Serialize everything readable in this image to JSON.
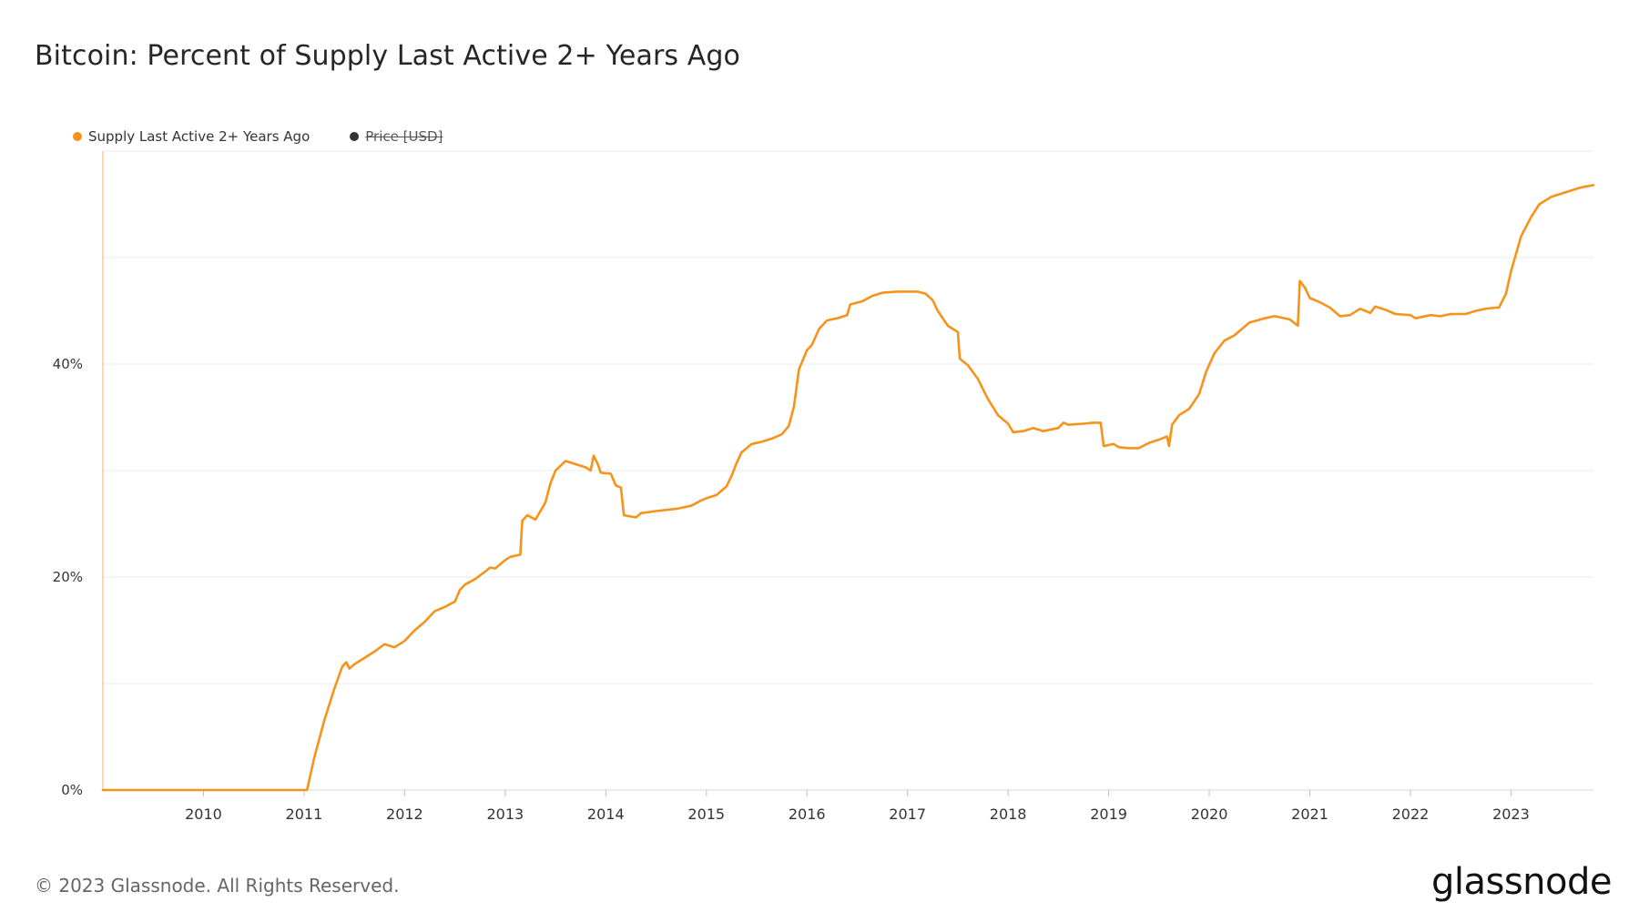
{
  "title": "Bitcoin: Percent of Supply Last Active 2+ Years Ago",
  "footer": "© 2023 Glassnode. All Rights Reserved.",
  "logo": "glassnode",
  "colors": {
    "series": "#f7931a",
    "price_legend": "#333333",
    "grid": "#ebebeb",
    "axis_text": "#333333"
  },
  "legend": [
    {
      "label": "Supply Last Active 2+ Years Ago",
      "color": "#f7931a",
      "hidden": false
    },
    {
      "label": "Price [USD]",
      "color": "#333333",
      "hidden": true
    }
  ],
  "chart_data": {
    "type": "line",
    "title": "Bitcoin: Percent of Supply Last Active 2+ Years Ago",
    "xlabel": "",
    "ylabel": "",
    "xlim": [
      2009.0,
      2023.82
    ],
    "ylim": [
      0,
      60
    ],
    "x_ticks": [
      "2010",
      "2011",
      "2012",
      "2013",
      "2014",
      "2015",
      "2016",
      "2017",
      "2018",
      "2019",
      "2020",
      "2021",
      "2022",
      "2023"
    ],
    "y_ticks": [
      "0%",
      "20%",
      "40%"
    ],
    "y_tick_values": [
      0,
      20,
      40
    ],
    "grid": true,
    "legend_position": "top-left",
    "series": [
      {
        "name": "Supply Last Active 2+ Years Ago",
        "points": [
          [
            2009.0,
            0.0
          ],
          [
            2011.03,
            0.0
          ],
          [
            2011.1,
            3.0
          ],
          [
            2011.2,
            6.5
          ],
          [
            2011.3,
            9.5
          ],
          [
            2011.38,
            11.6
          ],
          [
            2011.42,
            12.0
          ],
          [
            2011.45,
            11.4
          ],
          [
            2011.5,
            11.8
          ],
          [
            2011.6,
            12.4
          ],
          [
            2011.7,
            13.0
          ],
          [
            2011.8,
            13.7
          ],
          [
            2011.9,
            13.4
          ],
          [
            2012.0,
            14.0
          ],
          [
            2012.1,
            15.0
          ],
          [
            2012.2,
            15.8
          ],
          [
            2012.3,
            16.8
          ],
          [
            2012.4,
            17.2
          ],
          [
            2012.5,
            17.7
          ],
          [
            2012.55,
            18.8
          ],
          [
            2012.6,
            19.3
          ],
          [
            2012.7,
            19.8
          ],
          [
            2012.8,
            20.5
          ],
          [
            2012.85,
            20.9
          ],
          [
            2012.9,
            20.8
          ],
          [
            2012.95,
            21.2
          ],
          [
            2013.0,
            21.6
          ],
          [
            2013.05,
            21.9
          ],
          [
            2013.15,
            22.1
          ],
          [
            2013.17,
            25.3
          ],
          [
            2013.22,
            25.8
          ],
          [
            2013.3,
            25.4
          ],
          [
            2013.35,
            26.2
          ],
          [
            2013.4,
            27.0
          ],
          [
            2013.45,
            28.8
          ],
          [
            2013.5,
            30.0
          ],
          [
            2013.6,
            30.9
          ],
          [
            2013.7,
            30.6
          ],
          [
            2013.8,
            30.3
          ],
          [
            2013.85,
            30.0
          ],
          [
            2013.88,
            31.4
          ],
          [
            2013.92,
            30.6
          ],
          [
            2013.95,
            29.8
          ],
          [
            2014.05,
            29.7
          ],
          [
            2014.1,
            28.6
          ],
          [
            2014.15,
            28.4
          ],
          [
            2014.18,
            25.8
          ],
          [
            2014.3,
            25.6
          ],
          [
            2014.35,
            26.0
          ],
          [
            2014.5,
            26.2
          ],
          [
            2014.7,
            26.4
          ],
          [
            2014.85,
            26.7
          ],
          [
            2014.95,
            27.2
          ],
          [
            2015.0,
            27.4
          ],
          [
            2015.1,
            27.7
          ],
          [
            2015.2,
            28.5
          ],
          [
            2015.25,
            29.5
          ],
          [
            2015.3,
            30.7
          ],
          [
            2015.35,
            31.7
          ],
          [
            2015.45,
            32.5
          ],
          [
            2015.55,
            32.7
          ],
          [
            2015.65,
            33.0
          ],
          [
            2015.75,
            33.4
          ],
          [
            2015.82,
            34.2
          ],
          [
            2015.87,
            36.0
          ],
          [
            2015.92,
            39.5
          ],
          [
            2016.0,
            41.3
          ],
          [
            2016.05,
            41.8
          ],
          [
            2016.12,
            43.3
          ],
          [
            2016.2,
            44.1
          ],
          [
            2016.3,
            44.3
          ],
          [
            2016.4,
            44.6
          ],
          [
            2016.43,
            45.6
          ],
          [
            2016.55,
            45.9
          ],
          [
            2016.65,
            46.4
          ],
          [
            2016.75,
            46.7
          ],
          [
            2016.9,
            46.8
          ],
          [
            2017.0,
            46.8
          ],
          [
            2017.1,
            46.8
          ],
          [
            2017.18,
            46.6
          ],
          [
            2017.25,
            46.0
          ],
          [
            2017.3,
            45.0
          ],
          [
            2017.4,
            43.6
          ],
          [
            2017.5,
            43.0
          ],
          [
            2017.52,
            40.5
          ],
          [
            2017.6,
            39.9
          ],
          [
            2017.7,
            38.6
          ],
          [
            2017.8,
            36.7
          ],
          [
            2017.9,
            35.2
          ],
          [
            2018.0,
            34.4
          ],
          [
            2018.05,
            33.6
          ],
          [
            2018.15,
            33.7
          ],
          [
            2018.25,
            34.0
          ],
          [
            2018.35,
            33.7
          ],
          [
            2018.5,
            34.0
          ],
          [
            2018.55,
            34.5
          ],
          [
            2018.6,
            34.3
          ],
          [
            2018.75,
            34.4
          ],
          [
            2018.85,
            34.5
          ],
          [
            2018.92,
            34.5
          ],
          [
            2018.95,
            32.3
          ],
          [
            2019.05,
            32.5
          ],
          [
            2019.1,
            32.2
          ],
          [
            2019.2,
            32.1
          ],
          [
            2019.3,
            32.1
          ],
          [
            2019.4,
            32.6
          ],
          [
            2019.5,
            32.9
          ],
          [
            2019.58,
            33.2
          ],
          [
            2019.6,
            32.3
          ],
          [
            2019.63,
            34.3
          ],
          [
            2019.7,
            35.2
          ],
          [
            2019.8,
            35.8
          ],
          [
            2019.9,
            37.2
          ],
          [
            2019.97,
            39.3
          ],
          [
            2020.05,
            41.0
          ],
          [
            2020.15,
            42.2
          ],
          [
            2020.25,
            42.7
          ],
          [
            2020.4,
            43.9
          ],
          [
            2020.55,
            44.3
          ],
          [
            2020.65,
            44.5
          ],
          [
            2020.8,
            44.2
          ],
          [
            2020.88,
            43.6
          ],
          [
            2020.9,
            47.8
          ],
          [
            2020.95,
            47.2
          ],
          [
            2021.0,
            46.2
          ],
          [
            2021.1,
            45.8
          ],
          [
            2021.2,
            45.3
          ],
          [
            2021.3,
            44.5
          ],
          [
            2021.4,
            44.6
          ],
          [
            2021.5,
            45.2
          ],
          [
            2021.55,
            45.0
          ],
          [
            2021.6,
            44.8
          ],
          [
            2021.65,
            45.4
          ],
          [
            2021.75,
            45.1
          ],
          [
            2021.85,
            44.7
          ],
          [
            2022.0,
            44.6
          ],
          [
            2022.05,
            44.3
          ],
          [
            2022.2,
            44.6
          ],
          [
            2022.3,
            44.5
          ],
          [
            2022.4,
            44.7
          ],
          [
            2022.55,
            44.7
          ],
          [
            2022.65,
            45.0
          ],
          [
            2022.75,
            45.2
          ],
          [
            2022.85,
            45.3
          ],
          [
            2022.88,
            45.3
          ],
          [
            2022.95,
            46.6
          ],
          [
            2023.0,
            48.7
          ],
          [
            2023.1,
            52.0
          ],
          [
            2023.2,
            53.8
          ],
          [
            2023.28,
            55.0
          ],
          [
            2023.4,
            55.7
          ],
          [
            2023.5,
            56.0
          ],
          [
            2023.6,
            56.3
          ],
          [
            2023.7,
            56.6
          ],
          [
            2023.82,
            56.8
          ]
        ]
      }
    ]
  }
}
